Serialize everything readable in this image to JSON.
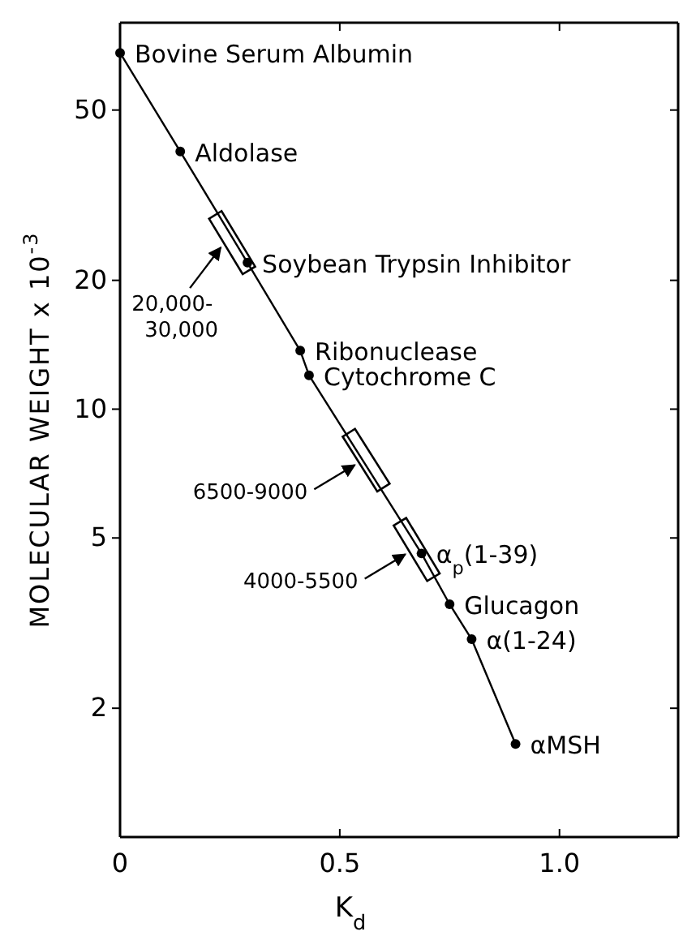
{
  "chart_data": {
    "type": "line",
    "xlabel": "K$_{d}$",
    "ylabel": "MOLECULAR WEIGHT x 10$^{-3}$",
    "log": "y",
    "grid": false,
    "marker": "circle",
    "line_style": "solid",
    "xlim": [
      0,
      1.27
    ],
    "xticks": [
      0,
      {
        "value": 0.5,
        "label": "0.5"
      },
      {
        "value": 1,
        "label": "1.0"
      }
    ],
    "ylim": [
      1,
      80
    ],
    "yticks": [
      2,
      5,
      10,
      20,
      50
    ],
    "series": [
      {
        "color": "#000000",
        "x": [
          0,
          0.137,
          0.29,
          0.41,
          0.43,
          0.686,
          0.75,
          0.8,
          0.9
        ],
        "values": [
          68,
          40,
          22,
          13.7,
          12,
          4.6,
          3.5,
          2.9,
          1.65
        ],
        "value_labels": [
          "Bovine Serum Albumin",
          "Aldolase",
          "Soybean Trypsin Inhibitor",
          "Ribonuclease",
          "Cytochrome C",
          "α$_{p}$(1-39)",
          "Glucagon",
          "α(1-24)",
          "αMSH"
        ]
      }
    ],
    "annotations": [
      {
        "text": "20,000-\n30,000",
        "x": 0.255,
        "y": 24.5
      },
      {
        "text": "6500-9000",
        "x": 0.56,
        "y": 7.6
      },
      {
        "text": "4000-5500",
        "x": 0.675,
        "y": 4.7
      }
    ]
  }
}
